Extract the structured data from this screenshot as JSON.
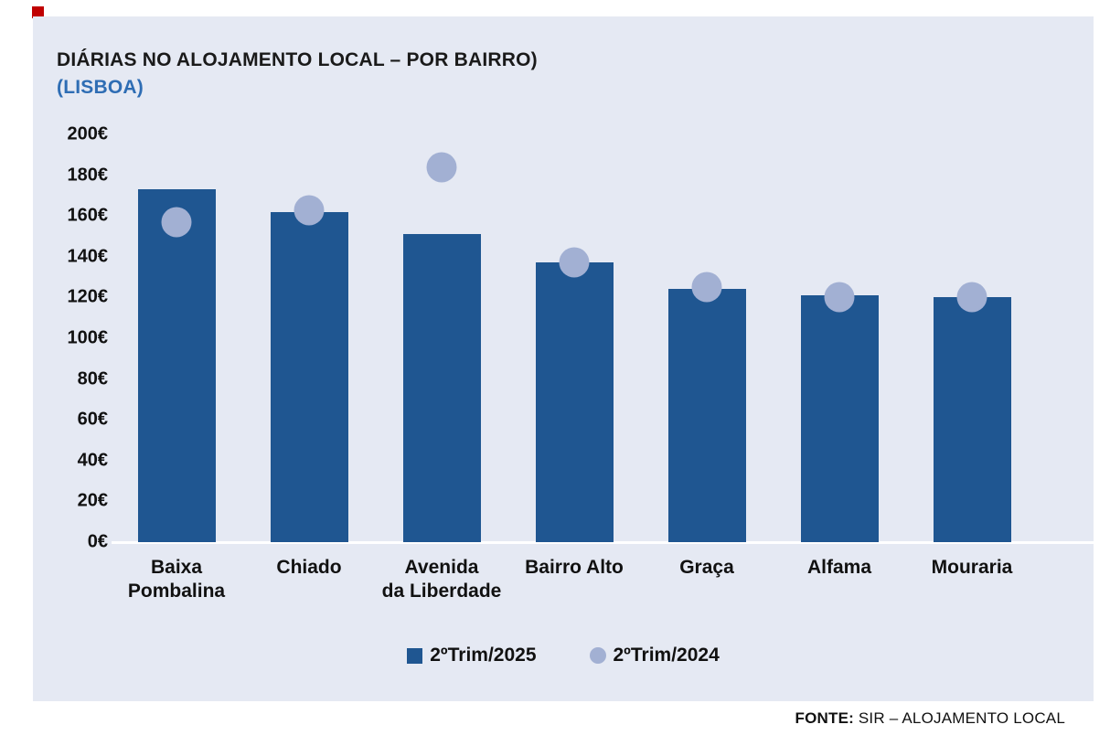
{
  "chart": {
    "title": "DIÁRIAS NO ALOJAMENTO LOCAL – POR BAIRRO)",
    "subtitle": "(LISBOA)"
  },
  "chart_data": {
    "type": "bar",
    "title": "DIÁRIAS NO ALOJAMENTO LOCAL – POR BAIRRO) (LISBOA)",
    "categories": [
      "Baixa Pombalina",
      "Chiado",
      "Avenida da Liberdade",
      "Bairro Alto",
      "Graça",
      "Alfama",
      "Mouraria"
    ],
    "category_lines": [
      [
        "Baixa",
        "Pombalina"
      ],
      [
        "Chiado"
      ],
      [
        "Avenida",
        "da Liberdade"
      ],
      [
        "Bairro Alto"
      ],
      [
        "Graça"
      ],
      [
        "Alfama"
      ],
      [
        "Mouraria"
      ]
    ],
    "series": [
      {
        "name": "2ºTrim/2025",
        "mark": "bar",
        "color": "#1F5691",
        "values": [
          173,
          162,
          151,
          137,
          124,
          121,
          120
        ]
      },
      {
        "name": "2ºTrim/2024",
        "mark": "dot",
        "color": "#A2B0D3",
        "values": [
          157,
          163,
          184,
          137,
          125,
          120,
          120
        ]
      }
    ],
    "xlabel": "",
    "ylabel": "",
    "ylim": [
      0,
      200
    ],
    "ytick_step": 20,
    "ytick_suffix": "€",
    "grid": false,
    "legend_position": "bottom"
  },
  "footer": {
    "source_label": "FONTE:",
    "source_text": " SIR – ALOJAMENTO LOCAL"
  },
  "colors": {
    "panel_bg": "#E5E9F3",
    "bar": "#1F5691",
    "dot": "#A2B0D3",
    "subtitle_blue": "#2E6DB4",
    "axis_line": "#FFFFFF",
    "brand_mark": "#C00000",
    "text": "#111111"
  }
}
